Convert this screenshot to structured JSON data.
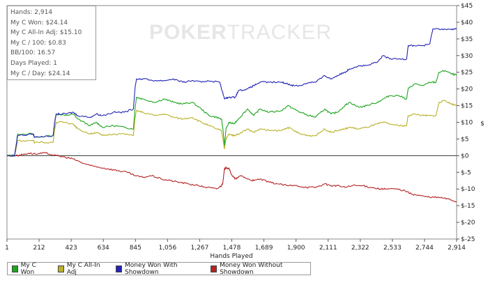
{
  "stats": {
    "lines": [
      "Hands: 2,914",
      "My C Won: $24.14",
      "My C All-In Adj: $15.10",
      "My C / 100: $0.83",
      "BB/100: 16.57",
      "Days Played: 1",
      "My C / Day: $24.14"
    ]
  },
  "watermark": {
    "bold": "POKER",
    "thin": "TRACKER"
  },
  "chart_data": {
    "type": "line",
    "title": "",
    "xlabel": "Hands Played",
    "ylabel": "$",
    "xlim": [
      1,
      2914
    ],
    "ylim": [
      -25,
      45
    ],
    "x_ticks": [
      "1",
      "212",
      "423",
      "634",
      "845",
      "1,056",
      "1,267",
      "1,478",
      "1,689",
      "1,900",
      "2,111",
      "2,322",
      "2,533",
      "2,744",
      "2,914"
    ],
    "y_ticks": [
      "$45",
      "$40",
      "$35",
      "$30",
      "$25",
      "$20",
      "$15",
      "$10",
      "$5",
      "$0",
      "$-5",
      "$-10",
      "$-15",
      "$-20",
      "$-25"
    ],
    "y_tick_values": [
      45,
      40,
      35,
      30,
      25,
      20,
      15,
      10,
      5,
      0,
      -5,
      -10,
      -15,
      -20,
      -25
    ],
    "grid": false,
    "legend_position": "bottom-left",
    "series": [
      {
        "name": "My C Won",
        "color": "#1fa51f",
        "points": [
          [
            1,
            0
          ],
          [
            50,
            0
          ],
          [
            60,
            3
          ],
          [
            70,
            6.5
          ],
          [
            170,
            6.5
          ],
          [
            180,
            5.5
          ],
          [
            300,
            6
          ],
          [
            310,
            10
          ],
          [
            320,
            12.5
          ],
          [
            380,
            12
          ],
          [
            430,
            12.5
          ],
          [
            460,
            11
          ],
          [
            540,
            9
          ],
          [
            580,
            10
          ],
          [
            620,
            8.5
          ],
          [
            690,
            9
          ],
          [
            760,
            8.5
          ],
          [
            820,
            8
          ],
          [
            830,
            14
          ],
          [
            840,
            17.5
          ],
          [
            880,
            17
          ],
          [
            960,
            16
          ],
          [
            1020,
            17
          ],
          [
            1080,
            16
          ],
          [
            1140,
            15.5
          ],
          [
            1200,
            16
          ],
          [
            1260,
            14
          ],
          [
            1310,
            12
          ],
          [
            1360,
            11.5
          ],
          [
            1390,
            11
          ],
          [
            1400,
            8
          ],
          [
            1410,
            3
          ],
          [
            1420,
            8
          ],
          [
            1440,
            10
          ],
          [
            1470,
            9.5
          ],
          [
            1500,
            11
          ],
          [
            1560,
            14
          ],
          [
            1600,
            12
          ],
          [
            1640,
            14
          ],
          [
            1700,
            13
          ],
          [
            1780,
            13.5
          ],
          [
            1820,
            15
          ],
          [
            1860,
            14
          ],
          [
            1900,
            13
          ],
          [
            1960,
            12
          ],
          [
            2000,
            11.5
          ],
          [
            2060,
            14
          ],
          [
            2100,
            12.5
          ],
          [
            2140,
            13
          ],
          [
            2190,
            15
          ],
          [
            2220,
            16
          ],
          [
            2280,
            14.5
          ],
          [
            2330,
            15
          ],
          [
            2400,
            16
          ],
          [
            2440,
            17
          ],
          [
            2480,
            18
          ],
          [
            2540,
            18
          ],
          [
            2590,
            17
          ],
          [
            2600,
            20
          ],
          [
            2640,
            21.5
          ],
          [
            2700,
            21
          ],
          [
            2740,
            22
          ],
          [
            2780,
            22
          ],
          [
            2800,
            25
          ],
          [
            2840,
            25.5
          ],
          [
            2880,
            24.5
          ],
          [
            2914,
            24.14
          ]
        ]
      },
      {
        "name": "My C All-In Adj",
        "color": "#b9b12a",
        "points": [
          [
            1,
            0
          ],
          [
            50,
            0
          ],
          [
            60,
            2
          ],
          [
            70,
            4.5
          ],
          [
            170,
            4.5
          ],
          [
            180,
            4
          ],
          [
            300,
            4
          ],
          [
            310,
            8
          ],
          [
            320,
            10
          ],
          [
            380,
            10
          ],
          [
            430,
            9.5
          ],
          [
            460,
            8
          ],
          [
            540,
            6.5
          ],
          [
            580,
            7
          ],
          [
            620,
            6
          ],
          [
            690,
            6.5
          ],
          [
            760,
            6.5
          ],
          [
            820,
            6
          ],
          [
            830,
            11
          ],
          [
            840,
            13.5
          ],
          [
            880,
            13
          ],
          [
            960,
            12
          ],
          [
            1020,
            12.5
          ],
          [
            1080,
            11.5
          ],
          [
            1140,
            11
          ],
          [
            1200,
            11.5
          ],
          [
            1260,
            10
          ],
          [
            1310,
            9
          ],
          [
            1360,
            8
          ],
          [
            1390,
            7.5
          ],
          [
            1400,
            5
          ],
          [
            1410,
            2
          ],
          [
            1420,
            5
          ],
          [
            1440,
            6.5
          ],
          [
            1470,
            6
          ],
          [
            1500,
            6.5
          ],
          [
            1560,
            8
          ],
          [
            1600,
            7
          ],
          [
            1640,
            8
          ],
          [
            1700,
            7.5
          ],
          [
            1780,
            7.5
          ],
          [
            1820,
            8.5
          ],
          [
            1860,
            7.5
          ],
          [
            1900,
            6.5
          ],
          [
            1960,
            6
          ],
          [
            2000,
            6
          ],
          [
            2060,
            8
          ],
          [
            2100,
            7
          ],
          [
            2140,
            7.5
          ],
          [
            2190,
            8
          ],
          [
            2220,
            8.5
          ],
          [
            2280,
            8
          ],
          [
            2330,
            8.5
          ],
          [
            2400,
            9.5
          ],
          [
            2440,
            10
          ],
          [
            2480,
            9.5
          ],
          [
            2540,
            9
          ],
          [
            2590,
            9
          ],
          [
            2600,
            12
          ],
          [
            2640,
            12.5
          ],
          [
            2700,
            12
          ],
          [
            2740,
            12
          ],
          [
            2780,
            12
          ],
          [
            2800,
            16
          ],
          [
            2840,
            16.5
          ],
          [
            2880,
            15.5
          ],
          [
            2914,
            15.1
          ]
        ]
      },
      {
        "name": "Money Won With Showdown",
        "color": "#2323b5",
        "points": [
          [
            1,
            0
          ],
          [
            50,
            0
          ],
          [
            60,
            3
          ],
          [
            70,
            6
          ],
          [
            170,
            6.5
          ],
          [
            180,
            5.5
          ],
          [
            300,
            6
          ],
          [
            310,
            10
          ],
          [
            320,
            12.5
          ],
          [
            380,
            12.5
          ],
          [
            430,
            13
          ],
          [
            460,
            12
          ],
          [
            540,
            11.5
          ],
          [
            580,
            12.5
          ],
          [
            620,
            12
          ],
          [
            690,
            13
          ],
          [
            760,
            13
          ],
          [
            820,
            14
          ],
          [
            830,
            20
          ],
          [
            840,
            23
          ],
          [
            880,
            23
          ],
          [
            960,
            22.5
          ],
          [
            1020,
            22.5
          ],
          [
            1080,
            23
          ],
          [
            1140,
            22
          ],
          [
            1200,
            22.5
          ],
          [
            1260,
            22
          ],
          [
            1300,
            22.5
          ],
          [
            1380,
            22
          ],
          [
            1410,
            17
          ],
          [
            1440,
            17.5
          ],
          [
            1480,
            17.5
          ],
          [
            1500,
            19.5
          ],
          [
            1560,
            20
          ],
          [
            1600,
            21
          ],
          [
            1640,
            22
          ],
          [
            1700,
            22
          ],
          [
            1780,
            22
          ],
          [
            1820,
            21.5
          ],
          [
            1860,
            21
          ],
          [
            1900,
            21
          ],
          [
            1960,
            22
          ],
          [
            2000,
            22
          ],
          [
            2060,
            24
          ],
          [
            2100,
            23
          ],
          [
            2140,
            24
          ],
          [
            2190,
            25
          ],
          [
            2220,
            26
          ],
          [
            2280,
            27
          ],
          [
            2330,
            27
          ],
          [
            2400,
            28
          ],
          [
            2440,
            30
          ],
          [
            2480,
            29
          ],
          [
            2540,
            29
          ],
          [
            2590,
            29
          ],
          [
            2600,
            33
          ],
          [
            2640,
            33
          ],
          [
            2700,
            33
          ],
          [
            2740,
            33.5
          ],
          [
            2760,
            38
          ],
          [
            2820,
            38
          ],
          [
            2880,
            37.8
          ],
          [
            2914,
            38
          ]
        ]
      },
      {
        "name": "Money Won Without Showdown",
        "color": "#b52323",
        "points": [
          [
            1,
            0
          ],
          [
            60,
            0
          ],
          [
            100,
            0.3
          ],
          [
            140,
            0.7
          ],
          [
            200,
            0.5
          ],
          [
            250,
            0.8
          ],
          [
            320,
            0
          ],
          [
            380,
            -0.5
          ],
          [
            430,
            -1
          ],
          [
            480,
            -2
          ],
          [
            540,
            -3
          ],
          [
            600,
            -3.5
          ],
          [
            660,
            -4
          ],
          [
            720,
            -4.5
          ],
          [
            780,
            -5
          ],
          [
            830,
            -6
          ],
          [
            880,
            -6.5
          ],
          [
            940,
            -6
          ],
          [
            1000,
            -7
          ],
          [
            1060,
            -7.5
          ],
          [
            1120,
            -8
          ],
          [
            1180,
            -8.5
          ],
          [
            1240,
            -9
          ],
          [
            1300,
            -9.5
          ],
          [
            1360,
            -10
          ],
          [
            1390,
            -9
          ],
          [
            1400,
            -8
          ],
          [
            1410,
            -4
          ],
          [
            1420,
            -3.5
          ],
          [
            1440,
            -4
          ],
          [
            1460,
            -6
          ],
          [
            1480,
            -7
          ],
          [
            1520,
            -6
          ],
          [
            1560,
            -7
          ],
          [
            1600,
            -7.5
          ],
          [
            1640,
            -7
          ],
          [
            1700,
            -8
          ],
          [
            1760,
            -8.5
          ],
          [
            1820,
            -9
          ],
          [
            1880,
            -9
          ],
          [
            1940,
            -9.5
          ],
          [
            2000,
            -9.5
          ],
          [
            2060,
            -8.5
          ],
          [
            2100,
            -9
          ],
          [
            2140,
            -9
          ],
          [
            2190,
            -9.5
          ],
          [
            2240,
            -9
          ],
          [
            2300,
            -9
          ],
          [
            2360,
            -9.5
          ],
          [
            2420,
            -10
          ],
          [
            2460,
            -10
          ],
          [
            2520,
            -10
          ],
          [
            2580,
            -10.5
          ],
          [
            2620,
            -11.5
          ],
          [
            2680,
            -12
          ],
          [
            2740,
            -12.5
          ],
          [
            2800,
            -12.5
          ],
          [
            2860,
            -13
          ],
          [
            2914,
            -13.8
          ]
        ]
      }
    ]
  }
}
